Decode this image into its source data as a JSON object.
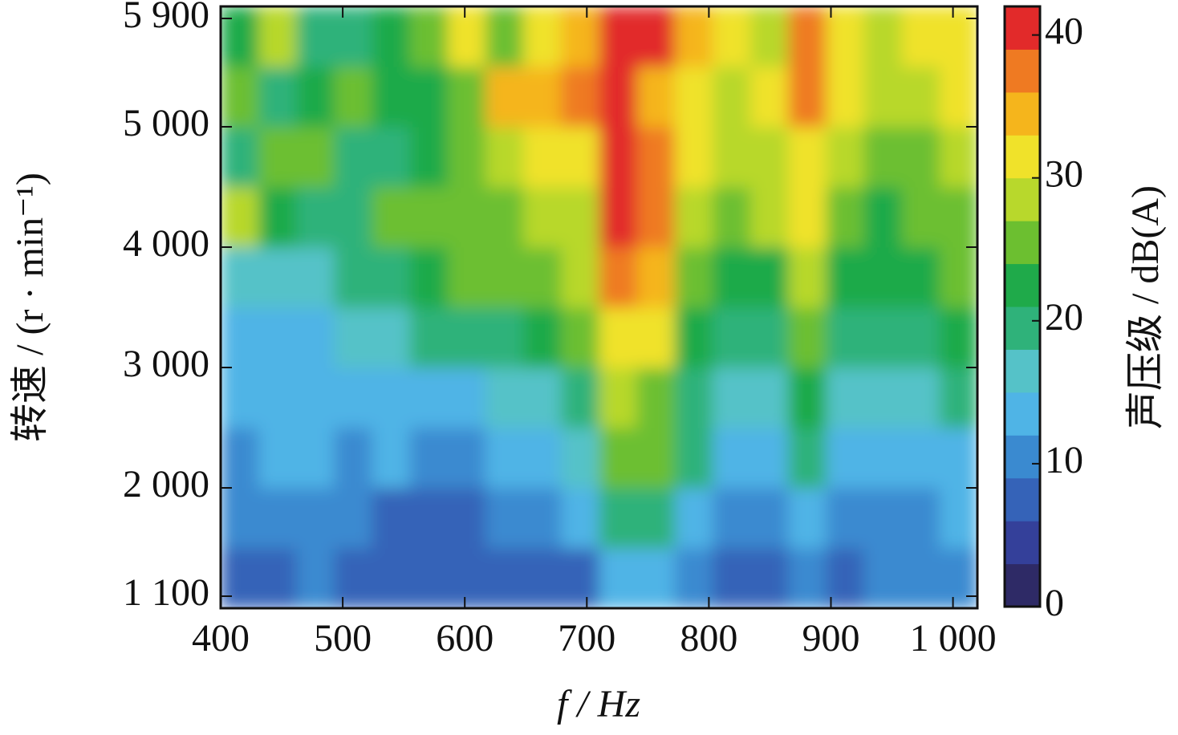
{
  "chart_data": {
    "type": "heatmap",
    "xlabel": "f / Hz",
    "ylabel": "转速 / (r · min⁻¹)",
    "colorbar_label": "声压级 / dB(A)",
    "x": [
      400,
      431,
      462,
      493,
      524,
      555,
      586,
      617,
      648,
      679,
      710,
      741,
      772,
      803,
      834,
      865,
      896,
      927,
      958,
      989,
      1020
    ],
    "y": [
      1000,
      1500,
      2000,
      2500,
      3000,
      3500,
      4000,
      4500,
      5000,
      5500,
      6000
    ],
    "z": [
      [
        8,
        7,
        9,
        8,
        7,
        6,
        6,
        7,
        8,
        8,
        14,
        14,
        9,
        7,
        8,
        9,
        8,
        10,
        9,
        10
      ],
      [
        9,
        9,
        10,
        9,
        8,
        8,
        8,
        9,
        10,
        12,
        20,
        18,
        12,
        9,
        10,
        12,
        10,
        11,
        11,
        12
      ],
      [
        11,
        12,
        12,
        11,
        12,
        11,
        11,
        12,
        14,
        16,
        26,
        24,
        18,
        14,
        14,
        18,
        14,
        13,
        14,
        14
      ],
      [
        13,
        13,
        13,
        13,
        14,
        13,
        14,
        15,
        17,
        20,
        28,
        26,
        20,
        16,
        17,
        22,
        16,
        15,
        16,
        18
      ],
      [
        14,
        14,
        13,
        15,
        16,
        18,
        18,
        20,
        22,
        24,
        31,
        30,
        22,
        19,
        20,
        25,
        19,
        18,
        20,
        22
      ],
      [
        16,
        15,
        16,
        18,
        20,
        22,
        24,
        24,
        26,
        27,
        36,
        34,
        25,
        22,
        23,
        27,
        22,
        21,
        22,
        24
      ],
      [
        28,
        22,
        18,
        20,
        24,
        24,
        25,
        26,
        28,
        28,
        40,
        36,
        28,
        26,
        28,
        30,
        24,
        22,
        24,
        26
      ],
      [
        18,
        26,
        24,
        20,
        20,
        22,
        24,
        28,
        30,
        30,
        39,
        36,
        30,
        27,
        28,
        32,
        28,
        25,
        26,
        27
      ],
      [
        24,
        20,
        22,
        26,
        22,
        22,
        24,
        34,
        34,
        36,
        40,
        34,
        30,
        28,
        30,
        36,
        30,
        28,
        28,
        32
      ],
      [
        22,
        28,
        18,
        20,
        22,
        26,
        30,
        26,
        30,
        34,
        41,
        40,
        34,
        30,
        28,
        36,
        32,
        28,
        30,
        32
      ]
    ],
    "xlim": [
      400,
      1020
    ],
    "ylim": [
      1000,
      6000
    ],
    "zlim": [
      0,
      42
    ],
    "xticks": [
      400,
      500,
      600,
      700,
      800,
      900,
      {
        "value": 1000,
        "label": "1 000"
      }
    ],
    "yticks": [
      {
        "value": 1100,
        "label": "1 100"
      },
      {
        "value": 2000,
        "label": "2 000"
      },
      {
        "value": 3000,
        "label": "3 000"
      },
      {
        "value": 4000,
        "label": "4 000"
      },
      {
        "value": 5000,
        "label": "5 000"
      },
      {
        "value": 5900,
        "label": "5 900"
      }
    ],
    "zticks": [
      0,
      10,
      20,
      30,
      40
    ],
    "colormap": [
      "#2e2a66",
      "#34409a",
      "#3563b8",
      "#3a8ad0",
      "#4fb4e6",
      "#55c2c8",
      "#2fb27a",
      "#1faa4a",
      "#6cbf30",
      "#b8d82c",
      "#f0e22a",
      "#f5b51c",
      "#ef7a22",
      "#e22a2a"
    ]
  }
}
